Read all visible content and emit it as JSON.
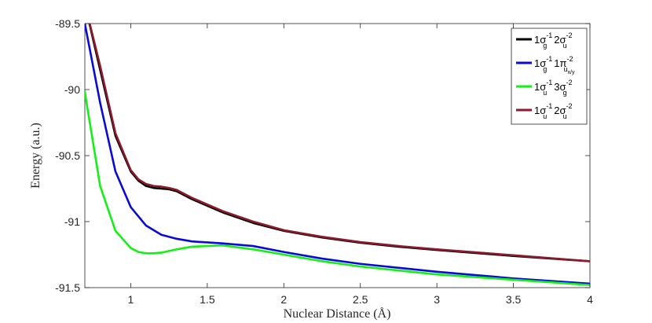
{
  "chart_data": {
    "type": "line",
    "title": "",
    "xlabel": "Nuclear Distance (Å)",
    "ylabel": "Energy (a.u.)",
    "xlim": [
      0.7,
      4
    ],
    "ylim": [
      -91.5,
      -89.5
    ],
    "xticks": [
      1,
      1.5,
      2,
      2.5,
      3,
      3.5,
      4
    ],
    "xtick_labels": [
      "1",
      "1.5",
      "2",
      "2.5",
      "3",
      "3.5",
      "4"
    ],
    "yticks": [
      -91.5,
      -91,
      -90.5,
      -90,
      -89.5
    ],
    "ytick_labels": [
      "-91.5",
      "-91",
      "-90.5",
      "-90",
      "-89.5"
    ],
    "grid": false,
    "legend_position": "top-right",
    "series": [
      {
        "name": "1σg-1 2σu-2",
        "color": "#000000",
        "x": [
          0.7,
          0.8,
          0.9,
          1.0,
          1.05,
          1.1,
          1.15,
          1.2,
          1.25,
          1.3,
          1.4,
          1.6,
          1.8,
          2.0,
          2.25,
          2.5,
          2.75,
          3.0,
          3.5,
          4.0
        ],
        "y": [
          -89.35,
          -89.85,
          -90.35,
          -90.62,
          -90.69,
          -90.73,
          -90.745,
          -90.75,
          -90.755,
          -90.77,
          -90.83,
          -90.93,
          -91.01,
          -91.07,
          -91.12,
          -91.16,
          -91.19,
          -91.215,
          -91.26,
          -91.3
        ]
      },
      {
        "name": "1σg-1 1πu x/y-2",
        "color": "#0a0ad6",
        "x": [
          0.7,
          0.8,
          0.9,
          1.0,
          1.1,
          1.2,
          1.3,
          1.4,
          1.6,
          1.8,
          2.0,
          2.25,
          2.5,
          3.0,
          3.5,
          4.0
        ],
        "y": [
          -89.5,
          -90.1,
          -90.62,
          -90.89,
          -91.03,
          -91.1,
          -91.13,
          -91.15,
          -91.165,
          -91.185,
          -91.23,
          -91.28,
          -91.32,
          -91.38,
          -91.43,
          -91.47
        ]
      },
      {
        "name": "1σu-1 3σg-2",
        "color": "#13f013",
        "x": [
          0.7,
          0.8,
          0.9,
          1.0,
          1.05,
          1.1,
          1.15,
          1.2,
          1.3,
          1.4,
          1.6,
          1.8,
          2.0,
          2.25,
          2.5,
          3.0,
          3.5,
          4.0
        ],
        "y": [
          -90.02,
          -90.73,
          -91.07,
          -91.2,
          -91.23,
          -91.24,
          -91.24,
          -91.235,
          -91.21,
          -91.19,
          -91.18,
          -91.21,
          -91.25,
          -91.3,
          -91.34,
          -91.4,
          -91.44,
          -91.48
        ]
      },
      {
        "name": "1σu-1 2σu-2",
        "color": "#8c1a2e",
        "x": [
          0.7,
          0.8,
          0.9,
          1.0,
          1.05,
          1.1,
          1.15,
          1.2,
          1.25,
          1.3,
          1.4,
          1.6,
          1.8,
          2.0,
          2.25,
          2.5,
          2.75,
          3.0,
          3.5,
          4.0
        ],
        "y": [
          -89.35,
          -89.82,
          -90.33,
          -90.61,
          -90.68,
          -90.715,
          -90.73,
          -90.735,
          -90.745,
          -90.76,
          -90.82,
          -90.92,
          -91.0,
          -91.065,
          -91.115,
          -91.155,
          -91.185,
          -91.21,
          -91.255,
          -91.3
        ]
      }
    ],
    "legend": [
      {
        "main1": "1σ",
        "sub1": "g",
        "sup1": "-1",
        "main2": "2σ",
        "sub2": "u",
        "sup2": "-2",
        "color": "#000000"
      },
      {
        "main1": "1σ",
        "sub1": "g",
        "sup1": "-1",
        "main2": "1π",
        "sub2": "u",
        "sup2": "-2",
        "sub2b": "x/y",
        "color": "#0a0ad6"
      },
      {
        "main1": "1σ",
        "sub1": "u",
        "sup1": "-1",
        "main2": "3σ",
        "sub2": "g",
        "sup2": "-2",
        "color": "#13f013"
      },
      {
        "main1": "1σ",
        "sub1": "u",
        "sup1": "-1",
        "main2": "2σ",
        "sub2": "u",
        "sup2": "-2",
        "color": "#8c1a2e"
      }
    ]
  }
}
